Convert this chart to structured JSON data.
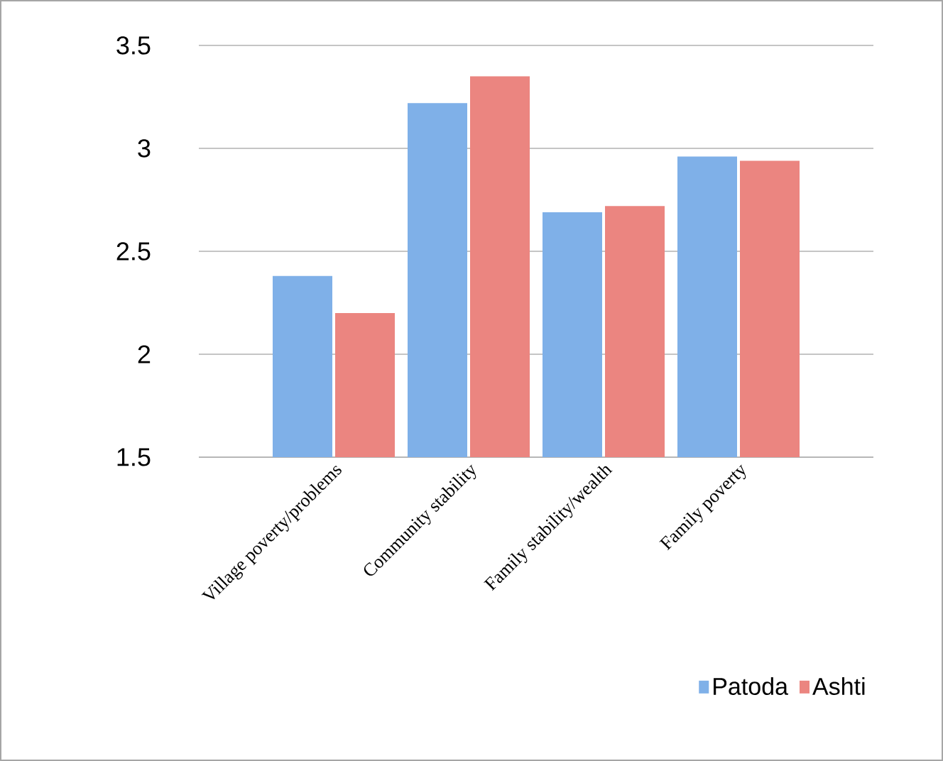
{
  "chart_data": {
    "type": "bar",
    "categories": [
      "Village poverty/problems",
      "Community stability",
      "Family stability/wealth",
      "Family poverty"
    ],
    "series": [
      {
        "name": "Patoda",
        "color": "#7fb0e8",
        "values": [
          2.38,
          3.22,
          2.69,
          2.96
        ]
      },
      {
        "name": "Ashti",
        "color": "#eb8580",
        "values": [
          2.2,
          3.35,
          2.72,
          2.94
        ]
      }
    ],
    "ylim": [
      1.5,
      3.5
    ],
    "yticks": [
      1.5,
      2,
      2.5,
      3,
      3.5
    ],
    "grid": "y",
    "legend": "bottom right"
  }
}
